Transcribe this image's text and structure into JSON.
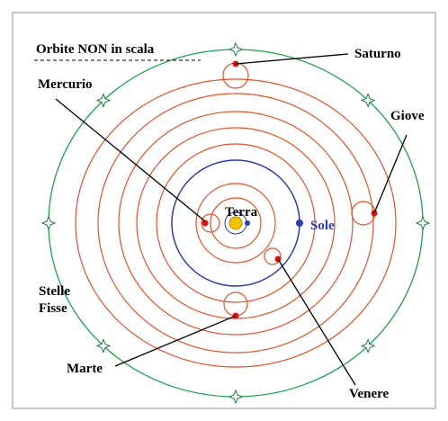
{
  "title": "Orbite NON in scala",
  "labels": {
    "saturn": "Saturno",
    "mercury": "Mercurio",
    "jupiter": "Giove",
    "earth": "Terra",
    "sun": "Sole",
    "fixed_stars": [
      "Stelle",
      "Fisse"
    ],
    "mars": "Marte",
    "venus": "Venere"
  }
}
